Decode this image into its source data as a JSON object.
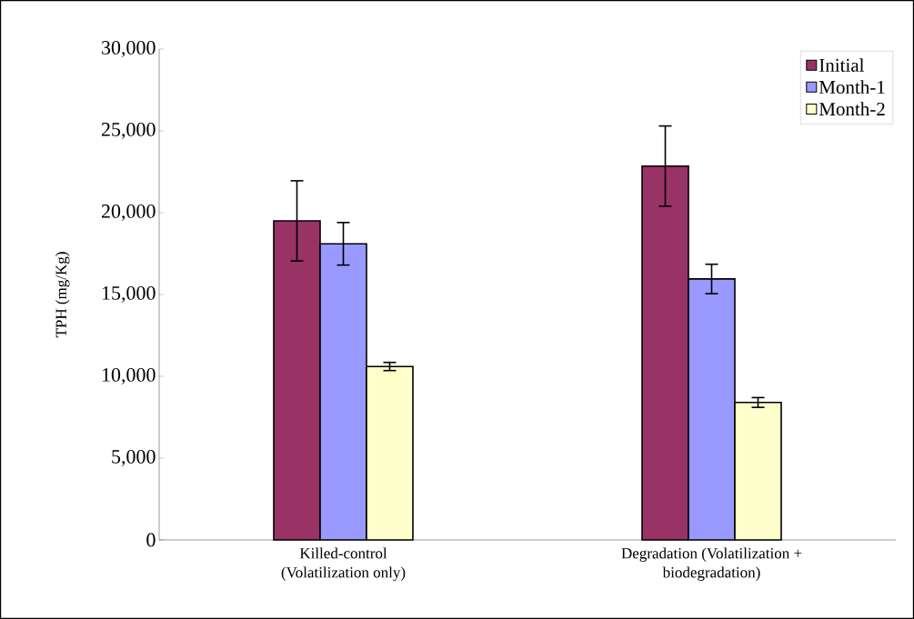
{
  "chart_data": {
    "type": "bar",
    "ylabel": "TPH (mg/Kg)",
    "categories": [
      "Killed-control (Volatilization only)",
      "Degradation (Volatilization + biodegradation)"
    ],
    "series": [
      {
        "name": "Initial",
        "color": "#993366",
        "values": [
          19500,
          22850
        ],
        "errors": [
          2450,
          2450
        ]
      },
      {
        "name": "Month-1",
        "color": "#9999ff",
        "values": [
          18100,
          15950
        ],
        "errors": [
          1300,
          900
        ]
      },
      {
        "name": "Month-2",
        "color": "#ffffcc",
        "values": [
          10600,
          8400
        ],
        "errors": [
          250,
          300
        ]
      }
    ],
    "ylim": [
      0,
      30000
    ],
    "yticks": [
      {
        "value": 0,
        "label": "0"
      },
      {
        "value": 5000,
        "label": "5,000"
      },
      {
        "value": 10000,
        "label": "10,000"
      },
      {
        "value": 15000,
        "label": "15,000"
      },
      {
        "value": 20000,
        "label": "20,000"
      },
      {
        "value": 25000,
        "label": "25,000"
      },
      {
        "value": 30000,
        "label": "30,000"
      }
    ],
    "grid": false,
    "legend": "top right"
  }
}
